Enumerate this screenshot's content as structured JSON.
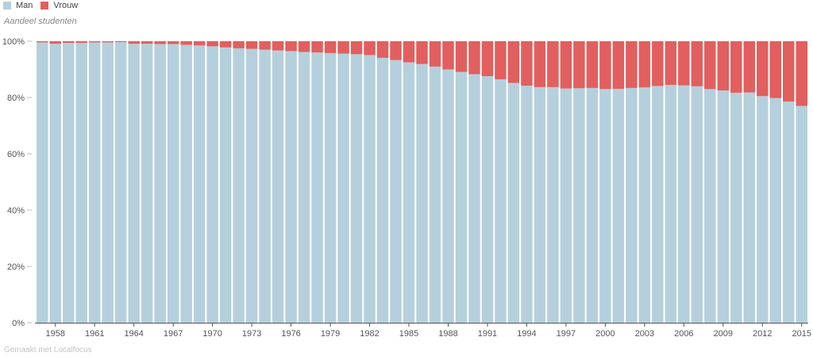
{
  "legend": {
    "items": [
      {
        "label": "Man",
        "color": "#b5d0dc"
      },
      {
        "label": "Vrouw",
        "color": "#e15f5f"
      }
    ]
  },
  "subtitle": "Aandeel studenten",
  "footer": "Gemaakt met Localfocus",
  "chart_data": {
    "type": "bar",
    "stacked": true,
    "title": "",
    "ylabel": "Aandeel studenten",
    "xlabel": "",
    "ylim": [
      0,
      100
    ],
    "yticks": [
      "0%",
      "20%",
      "40%",
      "60%",
      "80%",
      "100%"
    ],
    "categories": [
      "1957",
      "1958",
      "1959",
      "1960",
      "1961",
      "1962",
      "1963",
      "1964",
      "1965",
      "1966",
      "1967",
      "1968",
      "1969",
      "1970",
      "1971",
      "1972",
      "1973",
      "1974",
      "1975",
      "1976",
      "1977",
      "1978",
      "1979",
      "1980",
      "1981",
      "1982",
      "1983",
      "1984",
      "1985",
      "1986",
      "1987",
      "1988",
      "1989",
      "1990",
      "1991",
      "1992",
      "1993",
      "1994",
      "1995",
      "1996",
      "1997",
      "1998",
      "1999",
      "2000",
      "2001",
      "2002",
      "2003",
      "2004",
      "2005",
      "2006",
      "2007",
      "2008",
      "2009",
      "2010",
      "2011",
      "2012",
      "2013",
      "2014",
      "2015"
    ],
    "xticks": [
      "1958",
      "1961",
      "1964",
      "1967",
      "1970",
      "1973",
      "1976",
      "1979",
      "1982",
      "1985",
      "1988",
      "1991",
      "1994",
      "1997",
      "2000",
      "2003",
      "2006",
      "2009",
      "2012",
      "2015"
    ],
    "series": [
      {
        "name": "Man",
        "values": [
          99.6,
          99.1,
          99.4,
          99.4,
          99.6,
          99.6,
          99.7,
          99.1,
          99.1,
          99.0,
          99.0,
          98.7,
          98.5,
          98.2,
          97.8,
          97.5,
          97.3,
          97.0,
          96.7,
          96.5,
          96.2,
          96.0,
          95.8,
          95.6,
          95.4,
          95.1,
          94.1,
          93.3,
          92.5,
          91.9,
          91.0,
          90.0,
          89.1,
          88.3,
          87.6,
          86.5,
          85.2,
          84.2,
          83.7,
          83.7,
          83.2,
          83.3,
          83.4,
          83.0,
          83.1,
          83.4,
          83.6,
          84.1,
          84.5,
          84.3,
          84.0,
          83.0,
          82.5,
          81.7,
          81.8,
          80.5,
          79.8,
          78.6,
          77.0
        ]
      },
      {
        "name": "Vrouw",
        "values": [
          0.4,
          0.9,
          0.6,
          0.6,
          0.4,
          0.4,
          0.3,
          0.9,
          0.9,
          1.0,
          1.0,
          1.3,
          1.5,
          1.8,
          2.2,
          2.5,
          2.7,
          3.0,
          3.3,
          3.5,
          3.8,
          4.0,
          4.2,
          4.4,
          4.6,
          4.9,
          5.9,
          6.7,
          7.5,
          8.1,
          9.0,
          10.0,
          10.9,
          11.7,
          12.4,
          13.5,
          14.8,
          15.8,
          16.3,
          16.3,
          16.8,
          16.7,
          16.6,
          17.0,
          16.9,
          16.6,
          16.4,
          15.9,
          15.5,
          15.7,
          16.0,
          17.0,
          17.5,
          18.3,
          18.2,
          19.5,
          20.2,
          21.4,
          23.0
        ]
      }
    ]
  }
}
